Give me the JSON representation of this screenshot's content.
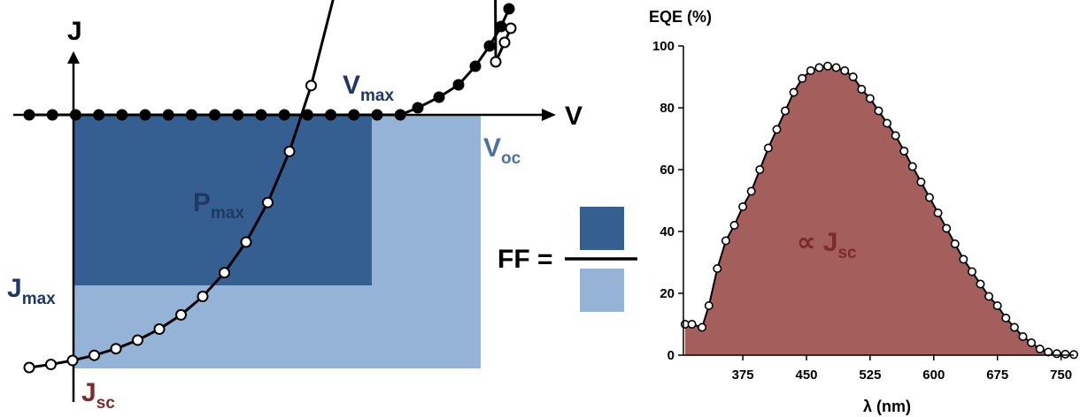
{
  "jv": {
    "axis_j": "J",
    "axis_v": "V",
    "vmax_main": "V",
    "vmax_sub": "max",
    "voc_main": "V",
    "voc_sub": "oc",
    "pmax_main": "P",
    "pmax_sub": "max",
    "jmax_main": "J",
    "jmax_sub": "max",
    "jsc_main": "J",
    "jsc_sub": "sc",
    "ff_label": "FF =",
    "colors": {
      "pmax_rect": "#365f91",
      "area_rect": "#95b3d7",
      "text_dark": "#1f3864",
      "text_blue": "#4a72a6",
      "text_jsc": "#7b2c2c"
    }
  },
  "chart_data": {
    "type": "area",
    "title": "",
    "ylabel": "EQE (%)",
    "xlabel": "λ (nm)",
    "xlim": [
      305,
      765
    ],
    "ylim": [
      0,
      100
    ],
    "xticks": [
      375,
      450,
      525,
      600,
      675,
      750
    ],
    "yticks": [
      0,
      20,
      40,
      60,
      80,
      100
    ],
    "fill_color": "#a45e5c",
    "annotation_main": "∝ J",
    "annotation_sub": "sc",
    "series": [
      {
        "x": [
          307,
          315,
          327,
          335,
          345,
          355,
          365,
          375,
          385,
          395,
          405,
          415,
          425,
          435,
          445,
          455,
          465,
          475,
          485,
          495,
          505,
          515,
          525,
          535,
          545,
          555,
          565,
          575,
          585,
          595,
          605,
          615,
          625,
          635,
          645,
          655,
          665,
          675,
          685,
          695,
          705,
          715,
          725,
          735,
          745,
          755,
          765
        ],
        "y": [
          10,
          10,
          9,
          16,
          28,
          37,
          42,
          48,
          53,
          60,
          67,
          73,
          79,
          85,
          89.5,
          92,
          93,
          93.5,
          93,
          92,
          90,
          86,
          83,
          79,
          75,
          71,
          66,
          61,
          56,
          51,
          46,
          41,
          36,
          31,
          27,
          23,
          19,
          16,
          12,
          9,
          6,
          4,
          2,
          1,
          0.5,
          0.3,
          0.2
        ]
      }
    ]
  }
}
